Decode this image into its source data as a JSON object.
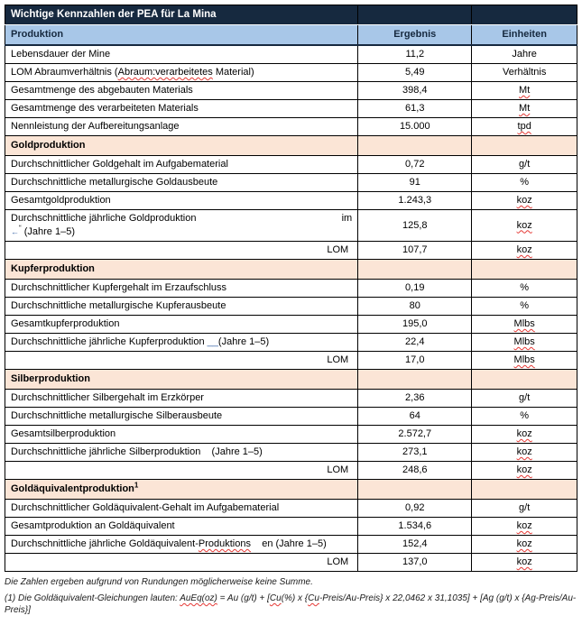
{
  "colors": {
    "title_bar_bg": "#16293F",
    "column_header_bg": "#A8C7E8",
    "section_header_bg": "#FBE5D6",
    "spellcheck_underline": "#E53935",
    "revision_mark_blue": "#3A66A8",
    "border": "#000000"
  },
  "title": "Wichtige Kennzahlen der PEA für La Mina",
  "columns": {
    "produktion": "Produktion",
    "ergebnis": "Ergebnis",
    "einheiten": "Einheiten"
  },
  "general": {
    "mine_life": {
      "label": "Lebensdauer der Mine",
      "value": "11,2",
      "unit": "Jahre"
    },
    "strip_ratio": {
      "label_pre": "LOM Abraumverhältnis (",
      "label_wavy": "Abraum:verarbeitetes",
      "label_post": " Material)",
      "value": "5,49",
      "unit": "Verhältnis"
    },
    "total_mined": {
      "label": "Gesamtmenge des abgebauten Materials",
      "value": "398,4",
      "unit": "Mt"
    },
    "total_processed": {
      "label": "Gesamtmenge des verarbeiteten Materials",
      "value": "61,3",
      "unit": "Mt"
    },
    "plant_capacity": {
      "label": "Nennleistung der Aufbereitungsanlage",
      "value": "15.000",
      "unit": "tpd"
    }
  },
  "gold": {
    "section": "Goldproduktion",
    "grade": {
      "label": "Durchschnittlicher Goldgehalt im Aufgabematerial",
      "value": "0,72",
      "unit": "g/t"
    },
    "recovery": {
      "label": "Durchschnittliche metallurgische Goldausbeute",
      "value": "91",
      "unit": "%"
    },
    "total": {
      "label": "Gesamtgoldproduktion",
      "value": "1.243,3",
      "unit": "koz"
    },
    "annual": {
      "line1_left": "Durchschnittliche jährliche Goldproduktion",
      "line1_right": "im",
      "line2_mark": "←",
      "line2_sup": "“",
      "line2_text": " (Jahre 1–5)",
      "value": "125,8",
      "unit": "koz"
    },
    "lom": {
      "label": "LOM",
      "value": "107,7",
      "unit": "koz"
    }
  },
  "copper": {
    "section": "Kupferproduktion",
    "grade": {
      "label": "Durchschnittlicher Kupfergehalt im Erzaufschluss",
      "value": "0,19",
      "unit": "%"
    },
    "recovery": {
      "label": "Durchschnittliche metallurgische Kupferausbeute",
      "value": "80",
      "unit": "%"
    },
    "total": {
      "label": "Gesamtkupferproduktion",
      "value": "195,0",
      "unit": "Mlbs"
    },
    "annual": {
      "label_pre": "Durchschnittliche jährliche Kupferproduktion ",
      "blue_mark": "__",
      "label_post": "(Jahre 1–5)",
      "value": "22,4",
      "unit": "Mlbs"
    },
    "lom": {
      "label": "LOM",
      "value": "17,0",
      "unit": "Mlbs"
    }
  },
  "silver": {
    "section": "Silberproduktion",
    "grade": {
      "label": "Durchschnittlicher Silbergehalt im Erzkörper",
      "value": "2,36",
      "unit": "g/t"
    },
    "recovery": {
      "label": "Durchschnittliche metallurgische Silberausbeute",
      "value": "64",
      "unit": "%"
    },
    "total": {
      "label": "Gesamtsilberproduktion",
      "value": "2.572,7",
      "unit": "koz"
    },
    "annual": {
      "label": "Durchschnittliche jährliche Silberproduktion    (Jahre 1–5)",
      "value": "273,1",
      "unit": "koz"
    },
    "lom": {
      "label": "LOM",
      "value": "248,6",
      "unit": "koz"
    }
  },
  "goldeq": {
    "section": "Goldäquivalentproduktion",
    "section_sup": "1",
    "grade": {
      "label": "Durchschnittlicher Goldäquivalent-Gehalt im Aufgabematerial",
      "value": "0,92",
      "unit": "g/t"
    },
    "total": {
      "label": "Gesamtproduktion an Goldäquivalent",
      "value": "1.534,6",
      "unit": "koz"
    },
    "annual": {
      "label_pre": "Durchschnittliche jährliche Goldäquivalent-",
      "label_wavy": "Produktions",
      "label_post": "    en (Jahre 1–5)",
      "value": "152,4",
      "unit": "koz"
    },
    "lom": {
      "label": "LOM",
      "value": "137,0",
      "unit": "koz"
    }
  },
  "footer": {
    "note_rounding": "Die Zahlen ergeben aufgrund von Rundungen möglicherweise keine Summe.",
    "footnote": {
      "pre": "(1) Die Goldäquivalent-Gleichungen lauten: ",
      "wavy1": "AuEq(oz)",
      "mid1": " = Au (g/t) + [",
      "wavy2": "Cu",
      "mid2": "(%) x {",
      "wavy3": "Cu",
      "tail": "-Preis/Au-Preis} x 22,0462 x 31,1035] + [Ag (g/t) x {Ag-Preis/Au-Preis}]"
    }
  }
}
